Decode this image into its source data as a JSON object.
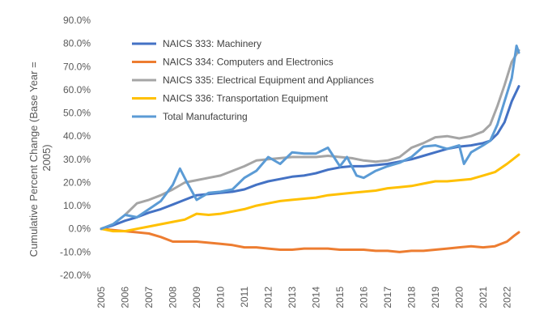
{
  "chart_data": {
    "type": "line",
    "title": "",
    "xlabel": "",
    "ylabel": "Cumulative Percent Change (Base Year = 2005)",
    "ylabel_lines": [
      "Cumulative Percent Change (Base Year =",
      "2005)"
    ],
    "xlim": [
      2005,
      2022.5
    ],
    "ylim": [
      -20,
      90
    ],
    "y_ticks": [
      -20,
      -10,
      0,
      10,
      20,
      30,
      40,
      50,
      60,
      70,
      80,
      90
    ],
    "y_tick_labels": [
      "-20.0%",
      "-10.0%",
      "0.0%",
      "10.0%",
      "20.0%",
      "30.0%",
      "40.0%",
      "50.0%",
      "60.0%",
      "70.0%",
      "80.0%",
      "90.0%"
    ],
    "x_ticks": [
      2005,
      2006,
      2007,
      2008,
      2009,
      2010,
      2011,
      2012,
      2013,
      2014,
      2015,
      2016,
      2017,
      2018,
      2019,
      2020,
      2021,
      2022
    ],
    "x_tick_labels": [
      "2005",
      "2006",
      "2007",
      "2008",
      "2009",
      "2010",
      "2011",
      "2012",
      "2013",
      "2014",
      "2015",
      "2016",
      "2017",
      "2018",
      "2019",
      "2020",
      "2021",
      "2022"
    ],
    "grid": false,
    "legend_position": "top-left",
    "series": [
      {
        "name": "NAICS 333: Machinery",
        "color": "#4472C4",
        "x": [
          2005,
          2005.5,
          2006,
          2006.5,
          2007,
          2007.5,
          2008,
          2008.5,
          2009,
          2009.5,
          2010,
          2010.5,
          2011,
          2011.5,
          2012,
          2012.5,
          2013,
          2013.5,
          2014,
          2014.5,
          2015,
          2015.5,
          2016,
          2016.5,
          2017,
          2017.5,
          2018,
          2018.5,
          2019,
          2019.5,
          2020,
          2020.5,
          2021,
          2021.3,
          2021.6,
          2021.9,
          2022.2,
          2022.5
        ],
        "values": [
          0,
          1.5,
          3.5,
          5,
          7,
          8.5,
          10.5,
          12.5,
          14.5,
          15,
          15.5,
          16,
          17,
          19,
          20.5,
          21.5,
          22.5,
          23,
          24,
          25.5,
          26.5,
          27,
          27,
          27.5,
          28,
          29,
          30,
          31.5,
          33,
          34.5,
          35.5,
          36,
          37,
          38,
          41,
          46,
          55,
          61.5
        ]
      },
      {
        "name": "NAICS 334: Computers and Electronics",
        "color": "#ED7D31",
        "x": [
          2005,
          2005.5,
          2006,
          2006.5,
          2007,
          2007.5,
          2008,
          2008.5,
          2009,
          2009.5,
          2010,
          2010.5,
          2011,
          2011.5,
          2012,
          2012.5,
          2013,
          2013.5,
          2014,
          2014.5,
          2015,
          2015.5,
          2016,
          2016.5,
          2017,
          2017.5,
          2018,
          2018.5,
          2019,
          2019.5,
          2020,
          2020.5,
          2021,
          2021.5,
          2022,
          2022.3,
          2022.5
        ],
        "values": [
          0,
          -0.5,
          -1,
          -1.5,
          -2,
          -3.5,
          -5.5,
          -5.5,
          -5.5,
          -6,
          -6.5,
          -7,
          -8,
          -8,
          -8.5,
          -9,
          -9,
          -8.5,
          -8.5,
          -8.5,
          -9,
          -9,
          -9,
          -9.5,
          -9.5,
          -10,
          -9.5,
          -9.5,
          -9,
          -8.5,
          -8,
          -7.5,
          -8,
          -7.5,
          -5.5,
          -3,
          -1.5
        ]
      },
      {
        "name": "NAICS 335: Electrical Equipment and Appliances",
        "color": "#A5A5A5",
        "x": [
          2005,
          2005.5,
          2006,
          2006.5,
          2007,
          2007.5,
          2008,
          2008.5,
          2009,
          2009.5,
          2010,
          2010.5,
          2011,
          2011.5,
          2012,
          2012.5,
          2013,
          2013.5,
          2014,
          2014.5,
          2015,
          2015.5,
          2016,
          2016.5,
          2017,
          2017.5,
          2018,
          2018.5,
          2019,
          2019.5,
          2020,
          2020.5,
          2021,
          2021.3,
          2021.6,
          2021.9,
          2022.2,
          2022.5
        ],
        "values": [
          0,
          2,
          6,
          11,
          12.5,
          14.5,
          17,
          20,
          21,
          22,
          23,
          25,
          27,
          29.5,
          30,
          30.5,
          31,
          31,
          31,
          31.5,
          31,
          30.5,
          29.5,
          29,
          29.5,
          31,
          35,
          37,
          39.5,
          40,
          39,
          40,
          42,
          45,
          53,
          62,
          72,
          77
        ]
      },
      {
        "name": "NAICS 336: Transportation Equipment",
        "color": "#FFC000",
        "x": [
          2005,
          2005.5,
          2006,
          2006.5,
          2007,
          2007.5,
          2008,
          2008.5,
          2009,
          2009.5,
          2010,
          2010.5,
          2011,
          2011.5,
          2012,
          2012.5,
          2013,
          2013.5,
          2014,
          2014.5,
          2015,
          2015.5,
          2016,
          2016.5,
          2017,
          2017.5,
          2018,
          2018.5,
          2019,
          2019.5,
          2020,
          2020.5,
          2021,
          2021.5,
          2022,
          2022.5
        ],
        "values": [
          0,
          -1,
          -1,
          0,
          1,
          2,
          3,
          4,
          6.5,
          6,
          6.5,
          7.5,
          8.5,
          10,
          11,
          12,
          12.5,
          13,
          13.5,
          14.5,
          15,
          15.5,
          16,
          16.5,
          17.5,
          18,
          18.5,
          19.5,
          20.5,
          20.5,
          21,
          21.5,
          23,
          24.5,
          28,
          32
        ]
      },
      {
        "name": "Total Manufacturing",
        "color": "#5B9BD5",
        "x": [
          2005,
          2005.5,
          2006,
          2006.5,
          2007,
          2007.5,
          2008,
          2008.3,
          2008.6,
          2009,
          2009.5,
          2010,
          2010.5,
          2011,
          2011.5,
          2012,
          2012.5,
          2013,
          2013.5,
          2014,
          2014.5,
          2015,
          2015.3,
          2015.7,
          2016,
          2016.5,
          2017,
          2017.5,
          2018,
          2018.5,
          2019,
          2019.5,
          2020,
          2020.2,
          2020.5,
          2021,
          2021.3,
          2021.6,
          2021.9,
          2022.2,
          2022.4,
          2022.5
        ],
        "values": [
          0,
          2,
          6,
          5,
          8.5,
          12,
          19,
          26,
          20,
          12.5,
          15.5,
          16,
          17,
          22,
          25,
          31,
          28,
          33,
          32.5,
          32.5,
          35,
          27,
          31,
          23,
          22,
          25,
          27,
          28.5,
          31,
          35.5,
          36,
          34.5,
          36,
          28,
          33,
          36,
          38,
          45,
          55,
          65,
          79,
          76
        ]
      }
    ]
  }
}
